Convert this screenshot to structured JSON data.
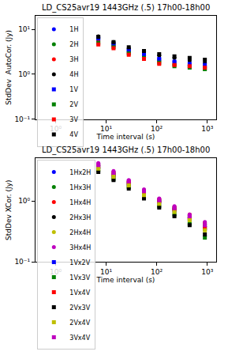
{
  "chart_data": [
    {
      "type": "scatter",
      "title": "LD_CS25avr19 1443GHz (.5) 17h00-18h00",
      "x_label": "Time interval (s)",
      "y_label": "StdDev  AutoCor. (Jy)",
      "log": true,
      "grid": false,
      "legend": "upper left",
      "xlim": [
        0.4,
        1500
      ],
      "ylim": [
        0.1,
        20
      ],
      "xticks": [
        {
          "value": 1,
          "label": "10⁰"
        },
        {
          "value": 10,
          "label": "10¹"
        },
        {
          "value": 100,
          "label": "10²"
        },
        {
          "value": 1000,
          "label": "10³"
        }
      ],
      "yticks": [
        {
          "value": 0.1,
          "label": "10⁻¹"
        },
        {
          "value": 1,
          "label": "10⁰"
        },
        {
          "value": 10,
          "label": "10¹"
        }
      ],
      "x": [
        7,
        14,
        28,
        56,
        112,
        224,
        448,
        896
      ],
      "series": [
        {
          "name": "1H",
          "color": "#0000ff",
          "marker": "circle",
          "values": [
            6.5,
            4.8,
            3.5,
            2.8,
            2.2,
            1.9,
            1.6,
            1.5
          ]
        },
        {
          "name": "2H",
          "color": "#008000",
          "marker": "circle",
          "values": [
            6.0,
            4.5,
            3.3,
            2.6,
            2.0,
            1.7,
            1.5,
            1.4
          ]
        },
        {
          "name": "3H",
          "color": "#ff0000",
          "marker": "circle",
          "values": [
            5.5,
            4.2,
            3.0,
            2.4,
            1.9,
            1.6,
            1.4,
            1.3
          ]
        },
        {
          "name": "4H",
          "color": "#000000",
          "marker": "circle",
          "values": [
            7.0,
            5.2,
            3.8,
            3.2,
            2.6,
            2.3,
            2.0,
            1.8
          ]
        },
        {
          "name": "1V",
          "color": "#0000ff",
          "marker": "square",
          "values": [
            6.2,
            4.6,
            3.4,
            2.7,
            2.2,
            1.9,
            1.7,
            1.6
          ]
        },
        {
          "name": "2V",
          "color": "#008000",
          "marker": "square",
          "values": [
            5.0,
            4.0,
            2.9,
            2.3,
            1.8,
            1.5,
            1.4,
            1.3
          ]
        },
        {
          "name": "3V",
          "color": "#ff0000",
          "marker": "square",
          "values": [
            4.6,
            3.8,
            2.7,
            2.2,
            1.7,
            1.6,
            1.5,
            1.4
          ]
        },
        {
          "name": "4V",
          "color": "#000000",
          "marker": "square",
          "values": [
            6.8,
            5.2,
            4.0,
            3.3,
            2.8,
            2.5,
            2.3,
            2.1
          ]
        }
      ]
    },
    {
      "type": "scatter",
      "title": "LD_CS25avr19 1443GHz (.5) 17h00-18h00",
      "x_label": "Time interval (s)",
      "y_label": "StdDev XCor. (Jy)",
      "log": true,
      "grid": false,
      "legend": "upper left",
      "xlim": [
        0.4,
        1500
      ],
      "ylim": [
        0.1,
        5
      ],
      "xticks": [
        {
          "value": 1,
          "label": "10⁰"
        },
        {
          "value": 10,
          "label": "10¹"
        },
        {
          "value": 100,
          "label": "10²"
        },
        {
          "value": 1000,
          "label": "10³"
        }
      ],
      "yticks": [
        {
          "value": 0.1,
          "label": "10⁻¹"
        },
        {
          "value": 1,
          "label": "10⁰"
        }
      ],
      "x": [
        7,
        14,
        28,
        56,
        112,
        224,
        448,
        896
      ],
      "series": [
        {
          "name": "1Hx2H",
          "color": "#0000ff",
          "marker": "circle",
          "values": [
            4.0,
            2.9,
            2.1,
            1.45,
            1.05,
            0.78,
            0.58,
            0.42
          ]
        },
        {
          "name": "1Hx3H",
          "color": "#008000",
          "marker": "circle",
          "values": [
            3.8,
            2.8,
            2.0,
            1.4,
            1.0,
            0.75,
            0.55,
            0.4
          ]
        },
        {
          "name": "1Hx4H",
          "color": "#ff0000",
          "marker": "circle",
          "values": [
            4.1,
            3.0,
            2.1,
            1.5,
            1.08,
            0.8,
            0.6,
            0.44
          ]
        },
        {
          "name": "2Hx3H",
          "color": "#000000",
          "marker": "circle",
          "values": [
            3.5,
            2.6,
            1.9,
            1.35,
            0.97,
            0.72,
            0.53,
            0.38
          ]
        },
        {
          "name": "2Hx4H",
          "color": "#bfbf00",
          "marker": "circle",
          "values": [
            3.9,
            2.9,
            2.05,
            1.45,
            1.04,
            0.77,
            0.57,
            0.41
          ]
        },
        {
          "name": "3Hx4H",
          "color": "#bf00bf",
          "marker": "circle",
          "values": [
            4.2,
            3.1,
            2.2,
            1.55,
            1.1,
            0.82,
            0.6,
            0.45
          ]
        },
        {
          "name": "1Vx2V",
          "color": "#0000ff",
          "marker": "square",
          "values": [
            3.6,
            2.6,
            1.9,
            1.3,
            0.95,
            0.7,
            0.5,
            0.35
          ]
        },
        {
          "name": "1Vx3V",
          "color": "#008000",
          "marker": "square",
          "values": [
            3.2,
            2.3,
            1.7,
            1.15,
            0.82,
            0.6,
            0.42,
            0.25
          ]
        },
        {
          "name": "1Vx4V",
          "color": "#ff0000",
          "marker": "square",
          "values": [
            3.7,
            2.7,
            1.95,
            1.35,
            0.98,
            0.72,
            0.52,
            0.36
          ]
        },
        {
          "name": "2Vx3V",
          "color": "#000000",
          "marker": "square",
          "values": [
            3.0,
            2.2,
            1.6,
            1.1,
            0.78,
            0.56,
            0.4,
            0.28
          ]
        },
        {
          "name": "2Vx4V",
          "color": "#bfbf00",
          "marker": "square",
          "values": [
            3.4,
            2.5,
            1.8,
            1.25,
            0.9,
            0.66,
            0.48,
            0.33
          ]
        },
        {
          "name": "3Vx4V",
          "color": "#bf00bf",
          "marker": "square",
          "values": [
            3.9,
            2.9,
            2.1,
            1.45,
            1.03,
            0.76,
            0.56,
            0.4
          ]
        }
      ]
    }
  ]
}
